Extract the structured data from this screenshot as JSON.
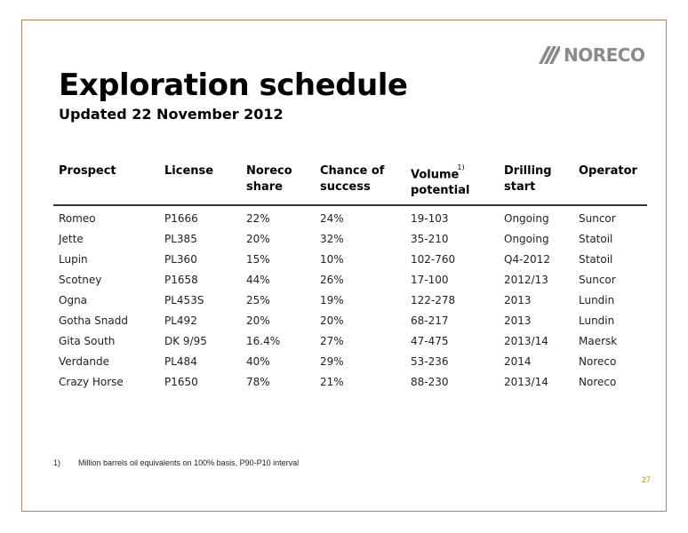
{
  "brand": {
    "name": "NORECO",
    "logo_icon": "noreco-stripes-icon",
    "logo_color": "#8a8a8a"
  },
  "title": "Exploration schedule",
  "subtitle": "Updated 22 November 2012",
  "table": {
    "headers": {
      "prospect": "Prospect",
      "license": "License",
      "share_1": "Noreco",
      "share_2": "share",
      "chance_1": "Chance of",
      "chance_2": "success",
      "volume_1": "Volume",
      "volume_sup": "1)",
      "volume_2": "potential",
      "drilling_1": "Drilling",
      "drilling_2": "start",
      "operator": "Operator"
    },
    "rows": [
      {
        "prospect": "Romeo",
        "license": "P1666",
        "share": "22%",
        "chance": "24%",
        "volume": "19-103",
        "drilling": "Ongoing",
        "operator": "Suncor"
      },
      {
        "prospect": "Jette",
        "license": "PL385",
        "share": "20%",
        "chance": "32%",
        "volume": "35-210",
        "drilling": "Ongoing",
        "operator": "Statoil"
      },
      {
        "prospect": "Lupin",
        "license": "PL360",
        "share": "15%",
        "chance": "10%",
        "volume": "102-760",
        "drilling": "Q4-2012",
        "operator": "Statoil"
      },
      {
        "prospect": "Scotney",
        "license": "P1658",
        "share": "44%",
        "chance": "26%",
        "volume": "17-100",
        "drilling": "2012/13",
        "operator": "Suncor"
      },
      {
        "prospect": "Ogna",
        "license": "PL453S",
        "share": "25%",
        "chance": "19%",
        "volume": "122-278",
        "drilling": "2013",
        "operator": "Lundin"
      },
      {
        "prospect": "Gotha Snadd",
        "license": "PL492",
        "share": "20%",
        "chance": "20%",
        "volume": "68-217",
        "drilling": "2013",
        "operator": "Lundin"
      },
      {
        "prospect": "Gita South",
        "license": "DK 9/95",
        "share": "16.4%",
        "chance": "27%",
        "volume": "47-475",
        "drilling": "2013/14",
        "operator": "Maersk"
      },
      {
        "prospect": "Verdande",
        "license": "PL484",
        "share": "40%",
        "chance": "29%",
        "volume": "53-236",
        "drilling": "2014",
        "operator": "Noreco"
      },
      {
        "prospect": "Crazy Horse",
        "license": "P1650",
        "share": "78%",
        "chance": "21%",
        "volume": "88-230",
        "drilling": "2013/14",
        "operator": "Noreco"
      }
    ]
  },
  "footnote": {
    "number": "1)",
    "text": "Million barrels oil equivalents on 100% basis, P90-P10 interval"
  },
  "page_number": "27",
  "colors": {
    "frame": "#a8875a",
    "page_number": "#b8872e"
  }
}
